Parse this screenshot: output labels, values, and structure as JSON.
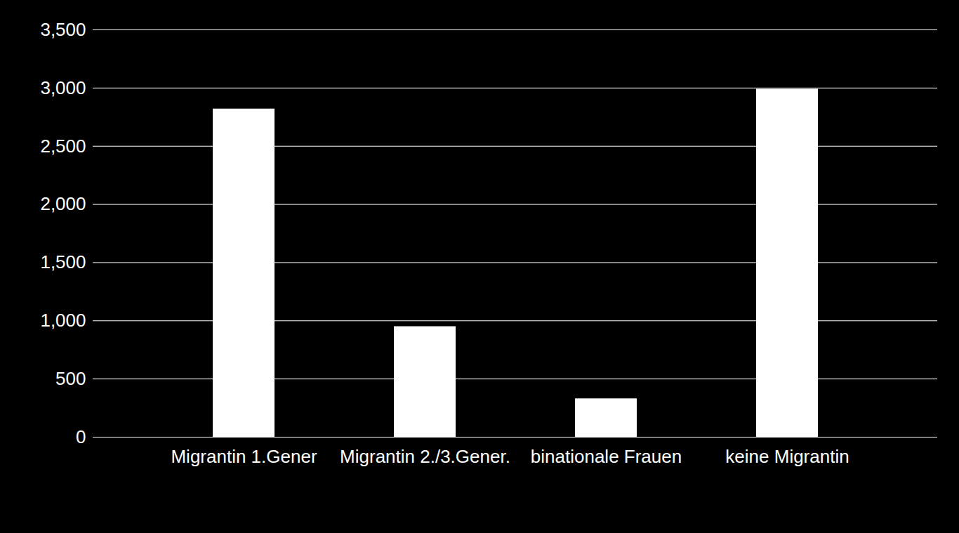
{
  "chart_data": {
    "type": "bar",
    "categories": [
      "Migrantin 1.Gener",
      "Migrantin 2./3.Gener.",
      "binationale Frauen",
      "keine Migrantin"
    ],
    "values": [
      2820,
      950,
      330,
      2990
    ],
    "color": "#ffffff",
    "ylim": [
      0,
      3500
    ],
    "yticks": [
      0,
      500,
      1000,
      1500,
      2000,
      2500,
      3000,
      3500
    ],
    "grid": true
  }
}
